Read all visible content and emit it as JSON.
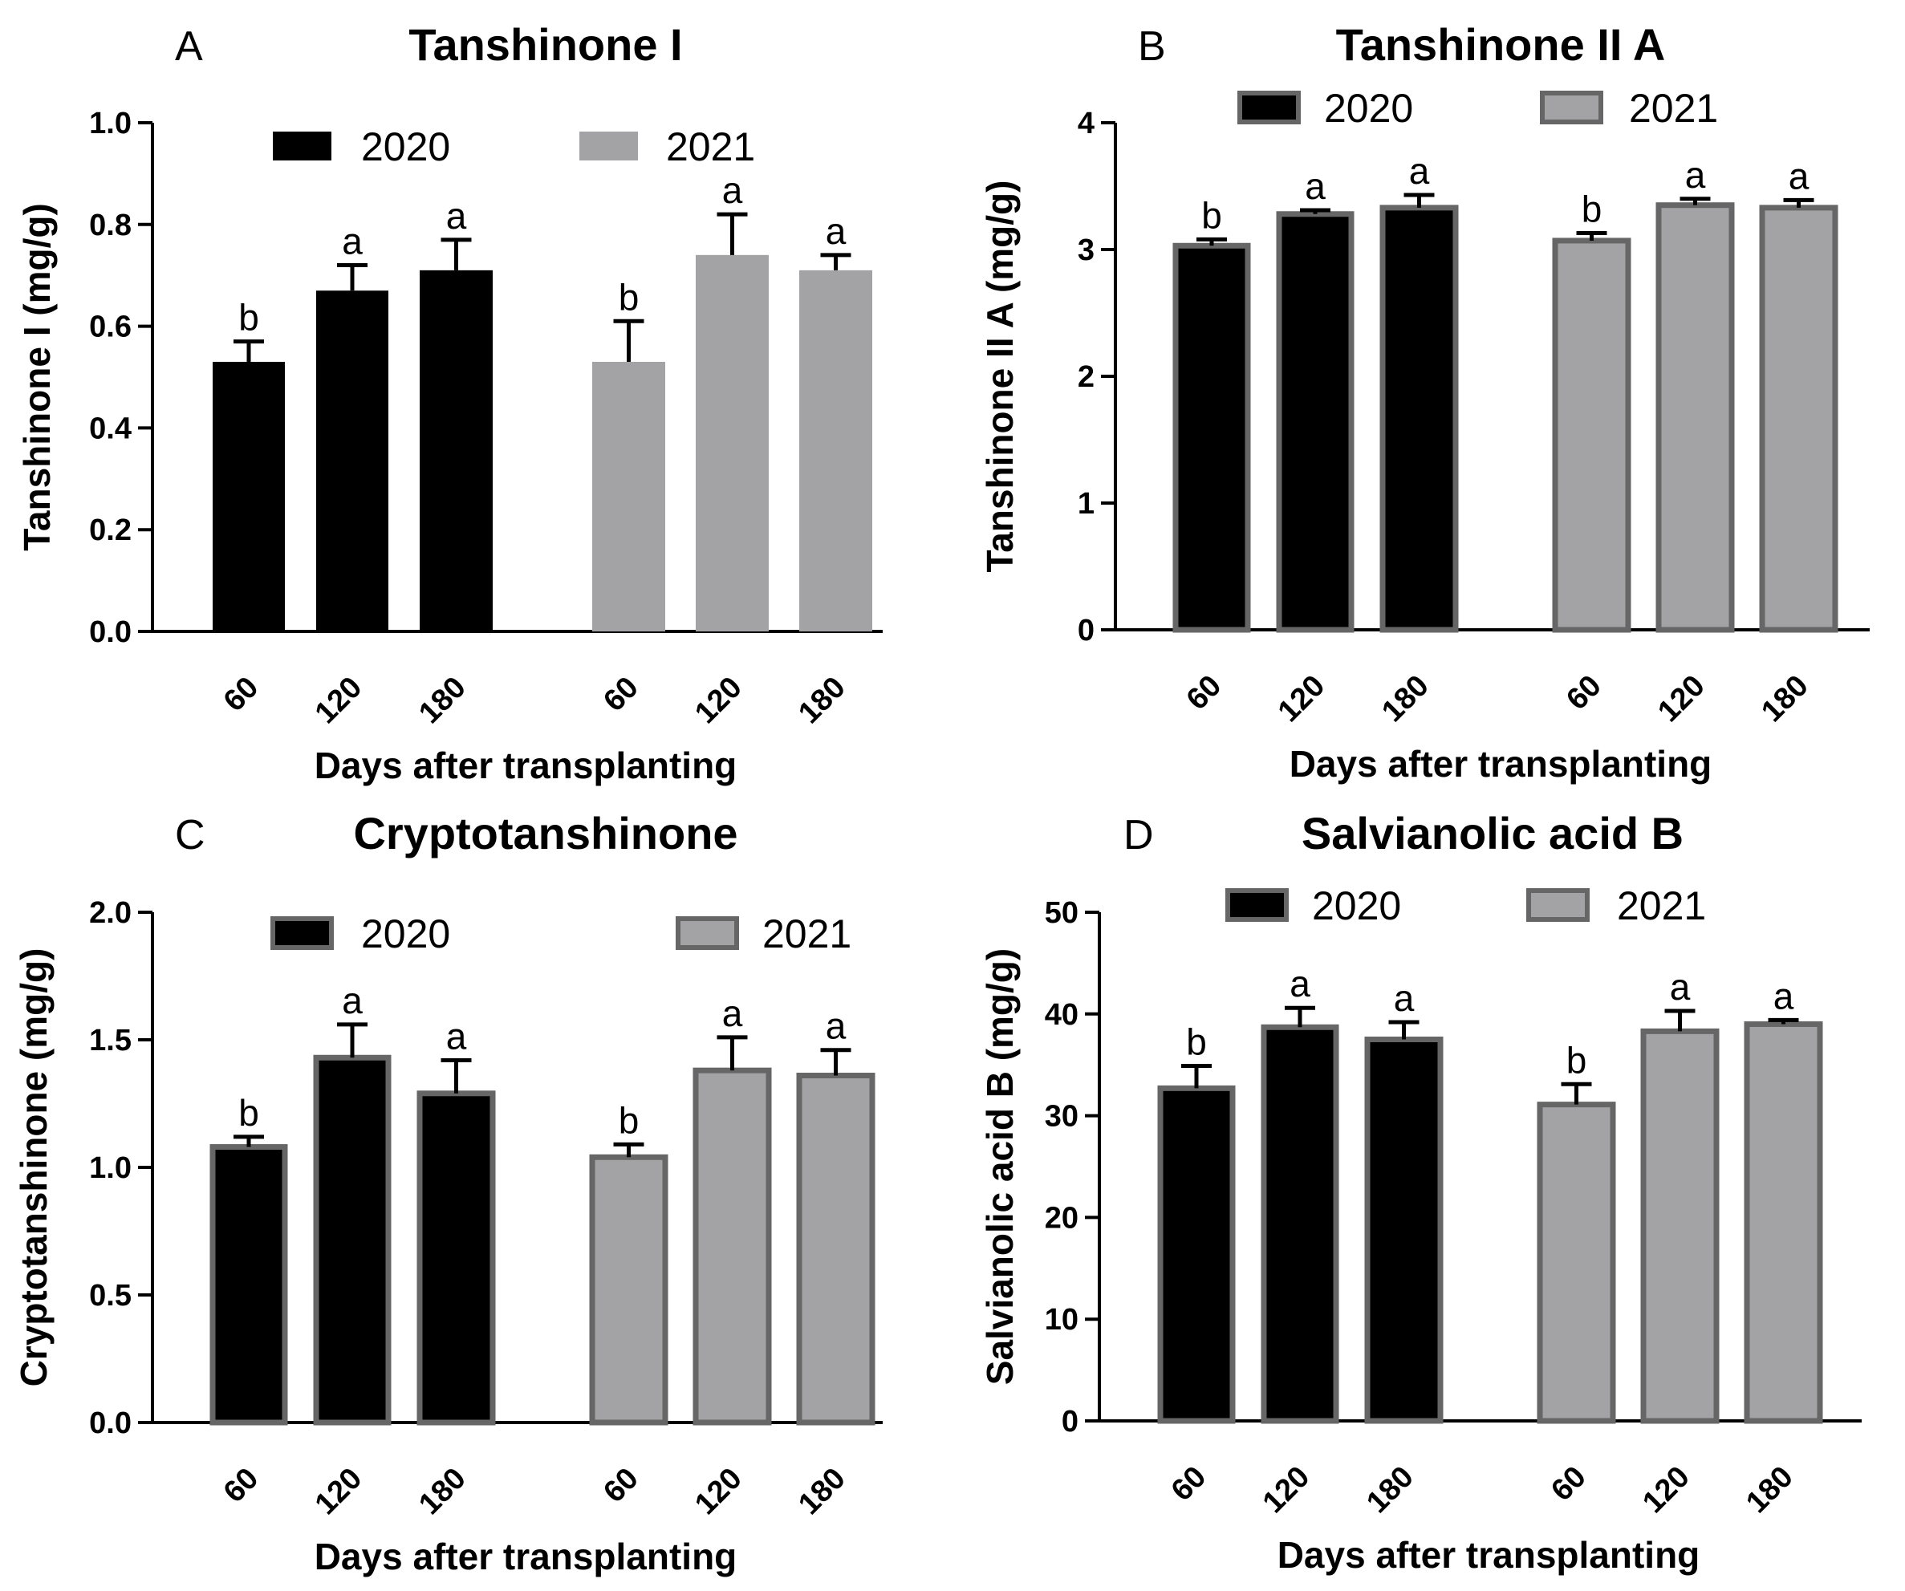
{
  "x_axis_label": "Days after transplanting",
  "colors": {
    "y2020_fill": "#000000",
    "y2021_fill": "#a3a3a6",
    "bar_outline": "#666666"
  },
  "chart_data": [
    {
      "panel": "A",
      "type": "bar",
      "title": "Tanshinone I",
      "ylabel": "Tanshinone I (mg/g)",
      "xlabel": "Days after transplanting",
      "ylim": [
        0,
        1.0
      ],
      "yticks": [
        "0.0",
        "0.2",
        "0.4",
        "0.6",
        "0.8",
        "1.0"
      ],
      "outlined": false,
      "legend": [
        "2020",
        "2021"
      ],
      "groups": [
        {
          "name": "2020",
          "categories": [
            "60",
            "120",
            "180"
          ],
          "values": [
            0.53,
            0.67,
            0.71
          ],
          "errors": [
            0.04,
            0.05,
            0.06
          ],
          "letters": [
            "b",
            "a",
            "a"
          ]
        },
        {
          "name": "2021",
          "categories": [
            "60",
            "120",
            "180"
          ],
          "values": [
            0.53,
            0.74,
            0.71
          ],
          "errors": [
            0.08,
            0.08,
            0.03
          ],
          "letters": [
            "b",
            "a",
            "a"
          ]
        }
      ]
    },
    {
      "panel": "B",
      "type": "bar",
      "title": "Tanshinone II A",
      "ylabel": "Tanshinone II A (mg/g)",
      "xlabel": "Days after transplanting",
      "ylim": [
        0,
        4
      ],
      "yticks": [
        "0",
        "1",
        "2",
        "3",
        "4"
      ],
      "outlined": true,
      "legend": [
        "2020",
        "2021"
      ],
      "groups": [
        {
          "name": "2020",
          "categories": [
            "60",
            "120",
            "180"
          ],
          "values": [
            3.03,
            3.28,
            3.33
          ],
          "errors": [
            0.05,
            0.03,
            0.1
          ],
          "letters": [
            "b",
            "a",
            "a"
          ]
        },
        {
          "name": "2021",
          "categories": [
            "60",
            "120",
            "180"
          ],
          "values": [
            3.07,
            3.35,
            3.33
          ],
          "errors": [
            0.06,
            0.05,
            0.06
          ],
          "letters": [
            "b",
            "a",
            "a"
          ]
        }
      ]
    },
    {
      "panel": "C",
      "type": "bar",
      "title": "Cryptotanshinone",
      "ylabel": "Cryptotanshinone (mg/g)",
      "xlabel": "Days after transplanting",
      "ylim": [
        0,
        2.0
      ],
      "yticks": [
        "0.0",
        "0.5",
        "1.0",
        "1.5",
        "2.0"
      ],
      "outlined": true,
      "legend": [
        "2020",
        "2021"
      ],
      "groups": [
        {
          "name": "2020",
          "categories": [
            "60",
            "120",
            "180"
          ],
          "values": [
            1.08,
            1.43,
            1.29
          ],
          "errors": [
            0.04,
            0.13,
            0.13
          ],
          "letters": [
            "b",
            "a",
            "a"
          ]
        },
        {
          "name": "2021",
          "categories": [
            "60",
            "120",
            "180"
          ],
          "values": [
            1.04,
            1.38,
            1.36
          ],
          "errors": [
            0.05,
            0.13,
            0.1
          ],
          "letters": [
            "b",
            "a",
            "a"
          ]
        }
      ]
    },
    {
      "panel": "D",
      "type": "bar",
      "title": "Salvianolic acid B",
      "ylabel": "Salvianolic acid B (mg/g)",
      "xlabel": "Days after transplanting",
      "ylim": [
        0,
        50
      ],
      "yticks": [
        "0",
        "10",
        "20",
        "30",
        "40",
        "50"
      ],
      "outlined": true,
      "legend": [
        "2020",
        "2021"
      ],
      "groups": [
        {
          "name": "2020",
          "categories": [
            "60",
            "120",
            "180"
          ],
          "values": [
            32.7,
            38.7,
            37.5
          ],
          "errors": [
            2.2,
            1.9,
            1.7
          ],
          "letters": [
            "b",
            "a",
            "a"
          ]
        },
        {
          "name": "2021",
          "categories": [
            "60",
            "120",
            "180"
          ],
          "values": [
            31.1,
            38.3,
            39.0
          ],
          "errors": [
            2.0,
            2.0,
            0.4
          ],
          "letters": [
            "b",
            "a",
            "a"
          ]
        }
      ]
    }
  ]
}
